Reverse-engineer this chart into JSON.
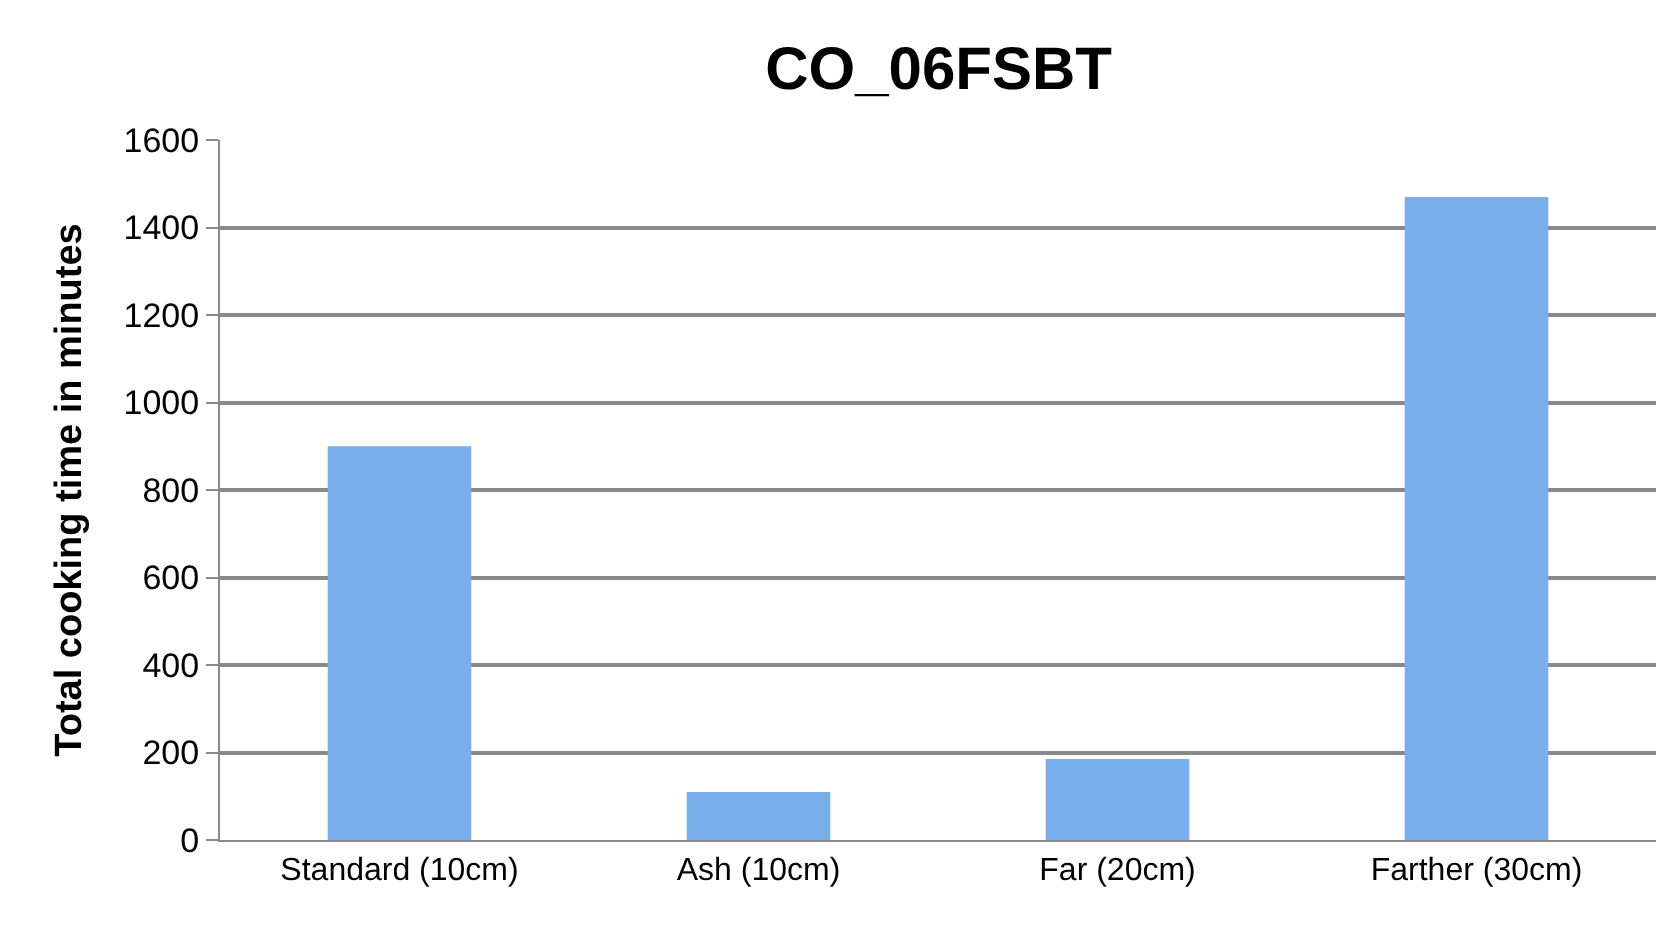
{
  "chart_data": {
    "type": "bar",
    "title": "CO_06FSBT",
    "ylabel": "Total cooking time in minutes",
    "categories": [
      "Standard (10cm)",
      "Ash (10cm)",
      "Far (20cm)",
      "Farther (30cm)"
    ],
    "values": [
      900,
      110,
      185,
      1470
    ],
    "color": "#7aaeea",
    "ylim": [
      0,
      1600
    ],
    "yticks": [
      0,
      200,
      400,
      600,
      800,
      1000,
      1200,
      1400,
      1600
    ],
    "grid": "y"
  }
}
